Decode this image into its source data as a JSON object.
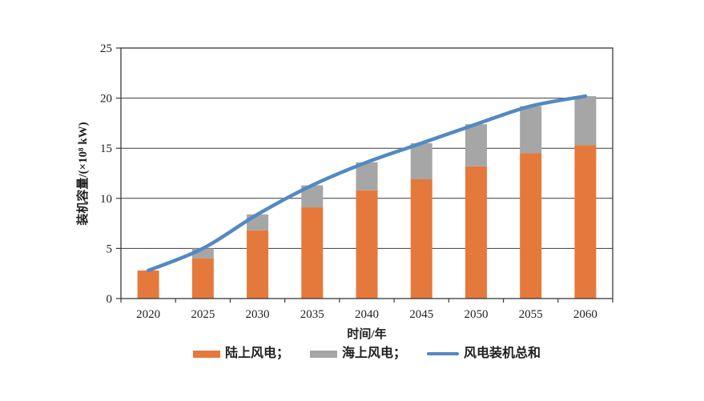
{
  "chart_data": {
    "type": "bar",
    "subtype": "stacked-bars-with-total-line",
    "categories": [
      "2020",
      "2025",
      "2030",
      "2035",
      "2040",
      "2045",
      "2050",
      "2055",
      "2060"
    ],
    "series": [
      {
        "name": "陆上风电",
        "type": "bar",
        "color": "#E5793B",
        "values": [
          2.8,
          4.0,
          6.8,
          9.1,
          10.8,
          11.9,
          13.2,
          14.5,
          15.3
        ]
      },
      {
        "name": "海上风电",
        "type": "bar",
        "color": "#A6A6A6",
        "values": [
          0,
          1.0,
          1.6,
          2.2,
          2.8,
          3.6,
          4.2,
          4.7,
          4.9
        ]
      },
      {
        "name": "风电装机总和",
        "type": "line",
        "color": "#5389C1",
        "values": [
          2.8,
          5.0,
          8.4,
          11.3,
          13.6,
          15.5,
          17.4,
          19.2,
          20.2
        ]
      }
    ],
    "title": "",
    "xlabel": "时间/年",
    "ylabel": "装机容量/(×10⁸ kW)",
    "ylim": [
      0,
      25
    ],
    "yticks": [
      0,
      5,
      10,
      15,
      20,
      25
    ],
    "grid": "horizontal",
    "grid_color": "#3a3a3a",
    "legend_position": "bottom"
  },
  "legend": {
    "items": [
      {
        "label": "陆上风电；",
        "swatch": "bar",
        "color": "#E5793B"
      },
      {
        "label": "海上风电；",
        "swatch": "bar",
        "color": "#A6A6A6"
      },
      {
        "label": "风电装机总和",
        "swatch": "line",
        "color": "#5389C1"
      }
    ]
  }
}
